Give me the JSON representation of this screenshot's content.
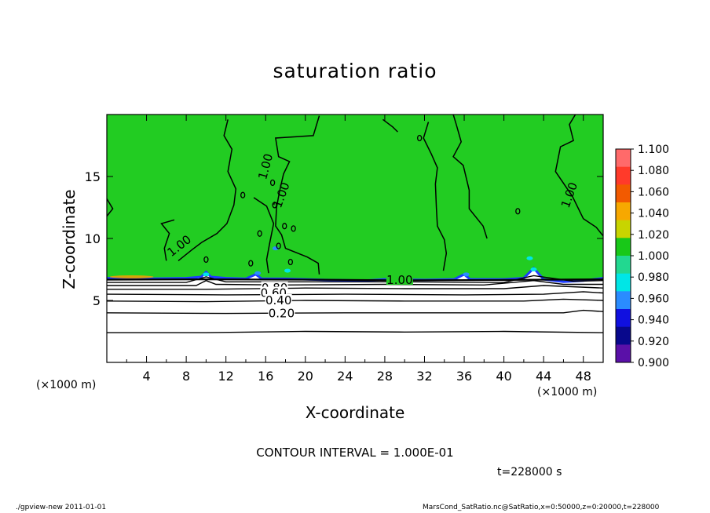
{
  "chart_data": {
    "type": "contour",
    "title": "saturation ratio",
    "xlabel": "X-coordinate",
    "ylabel": "Z-coordinate",
    "x_unit_left": "(×1000 m)",
    "x_unit_right": "(×1000 m)",
    "xlim": [
      0,
      50
    ],
    "ylim": [
      0,
      20
    ],
    "xticks": [
      4,
      8,
      12,
      16,
      20,
      24,
      28,
      32,
      36,
      40,
      44,
      48
    ],
    "yticks": [
      5,
      10,
      15
    ],
    "contour_labels": [
      "1.00",
      "1.00",
      "1.00",
      "1.00",
      "1.00",
      "0.80",
      "0.60",
      "0.40",
      "0.20"
    ],
    "contour_interval_text": "CONTOUR INTERVAL = 1.000E-01",
    "time_text": "t=228000  s",
    "colorbar": {
      "labels": [
        "1.100",
        "1.080",
        "1.060",
        "1.040",
        "1.020",
        "1.000",
        "0.980",
        "0.960",
        "0.940",
        "0.920",
        "0.900"
      ],
      "colors": [
        "#ff6a6a",
        "#ff3a2a",
        "#f25a00",
        "#f7a800",
        "#c8d400",
        "#18c818",
        "#22d890",
        "#00e6e6",
        "#2a8cff",
        "#1010e0",
        "#08088c",
        "#5a10a8"
      ]
    },
    "field_colors": {
      "upper": "#22cc22",
      "boundary": "#1e3cff",
      "lower": "#ffffff"
    }
  },
  "footer": {
    "left": "./gpview-new   2011-01-01",
    "right": "MarsCond_SatRatio.nc@SatRatio,x=0:50000,z=0:20000,t=228000"
  }
}
